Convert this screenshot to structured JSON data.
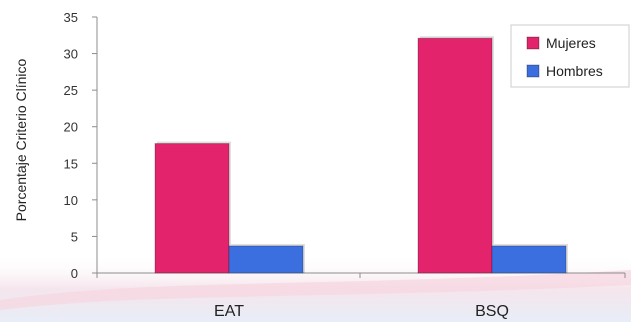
{
  "chart_data": {
    "type": "bar",
    "categories": [
      "EAT",
      "BSQ"
    ],
    "series": [
      {
        "name": "Mujeres",
        "values": [
          17.7,
          32.1
        ],
        "color": "#e3236b"
      },
      {
        "name": "Hombres",
        "values": [
          3.7,
          3.7
        ],
        "color": "#3b6fe0"
      }
    ],
    "title": "",
    "xlabel": "",
    "ylabel": "Porcentaje Criterio Clínico",
    "ylim": [
      0,
      35
    ],
    "yticks": [
      "0",
      "5",
      "10",
      "15",
      "20",
      "25",
      "30",
      "35"
    ],
    "grid": false,
    "legend_position": "top-right"
  }
}
